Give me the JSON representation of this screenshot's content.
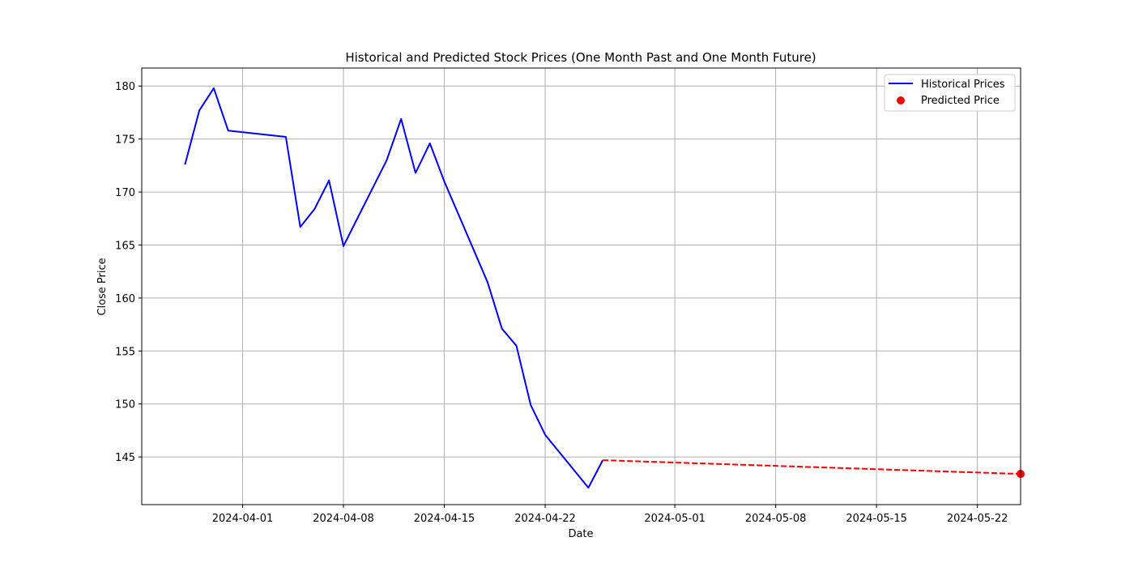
{
  "chart_data": {
    "type": "line",
    "title": "Historical and Predicted Stock Prices (One Month Past and One Month Future)",
    "xlabel": "Date",
    "ylabel": "Close Price",
    "xlim": [
      "2024-03-25",
      "2024-05-25"
    ],
    "ylim": [
      140.5,
      181.7
    ],
    "grid": true,
    "legend_position": "top-right",
    "x_ticks": [
      "2024-04-01",
      "2024-04-08",
      "2024-04-15",
      "2024-04-22",
      "2024-05-01",
      "2024-05-08",
      "2024-05-15",
      "2024-05-22"
    ],
    "y_ticks": [
      145,
      150,
      155,
      160,
      165,
      170,
      175,
      180
    ],
    "series": [
      {
        "name": "Historical Prices",
        "style": "line",
        "color": "#0000ff",
        "x": [
          "2024-03-28",
          "2024-03-29",
          "2024-03-30",
          "2024-03-31",
          "2024-04-04",
          "2024-04-05",
          "2024-04-06",
          "2024-04-07",
          "2024-04-08",
          "2024-04-11",
          "2024-04-12",
          "2024-04-13",
          "2024-04-14",
          "2024-04-15",
          "2024-04-18",
          "2024-04-19",
          "2024-04-20",
          "2024-04-21",
          "2024-04-22",
          "2024-04-25",
          "2024-04-26"
        ],
        "values": [
          172.6,
          177.7,
          179.8,
          175.8,
          175.2,
          166.7,
          168.4,
          171.1,
          164.9,
          173.0,
          176.9,
          171.8,
          174.6,
          171.0,
          161.5,
          157.1,
          155.5,
          149.9,
          147.1,
          142.1,
          144.7
        ]
      },
      {
        "name": "",
        "style": "dashed",
        "color": "#ff0000",
        "x": [
          "2024-04-26",
          "2024-05-25"
        ],
        "values": [
          144.7,
          143.4
        ]
      },
      {
        "name": "Predicted Price",
        "style": "point",
        "color": "#ff0000",
        "x": [
          "2024-05-25"
        ],
        "values": [
          143.4
        ]
      }
    ]
  }
}
